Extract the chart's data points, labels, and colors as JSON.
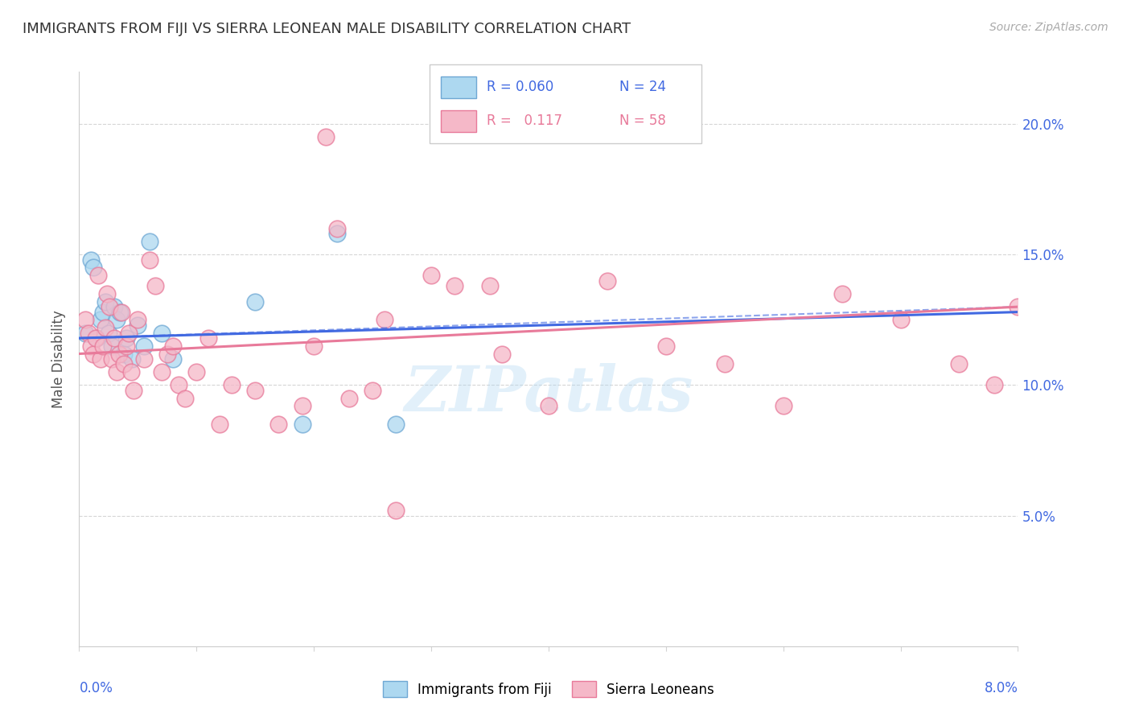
{
  "title": "IMMIGRANTS FROM FIJI VS SIERRA LEONEAN MALE DISABILITY CORRELATION CHART",
  "source": "Source: ZipAtlas.com",
  "ylabel": "Male Disability",
  "xlim": [
    0.0,
    8.0
  ],
  "ylim": [
    0.0,
    22.0
  ],
  "yticks": [
    5.0,
    10.0,
    15.0,
    20.0
  ],
  "ytick_labels": [
    "5.0%",
    "10.0%",
    "15.0%",
    "20.0%"
  ],
  "fiji_color": "#add8f0",
  "fiji_edge_color": "#6fa8d4",
  "sierra_color": "#f5b8c8",
  "sierra_edge_color": "#e87a9a",
  "fiji_line_color": "#4169E1",
  "sierra_line_color": "#e87a9a",
  "fiji_R": "0.060",
  "fiji_N": "24",
  "sierra_R": "0.117",
  "sierra_N": "58",
  "fiji_scatter_x": [
    0.05,
    0.1,
    0.12,
    0.15,
    0.18,
    0.2,
    0.22,
    0.25,
    0.28,
    0.3,
    0.32,
    0.35,
    0.38,
    0.4,
    0.45,
    0.5,
    0.55,
    0.6,
    0.7,
    0.8,
    1.5,
    1.9,
    2.2,
    2.7
  ],
  "fiji_scatter_y": [
    12.0,
    14.8,
    14.5,
    11.8,
    12.5,
    12.8,
    13.2,
    12.0,
    11.5,
    13.0,
    12.5,
    12.8,
    11.2,
    11.8,
    11.0,
    12.3,
    11.5,
    15.5,
    12.0,
    11.0,
    13.2,
    8.5,
    15.8,
    8.5
  ],
  "sierra_scatter_x": [
    0.05,
    0.08,
    0.1,
    0.12,
    0.14,
    0.16,
    0.18,
    0.2,
    0.22,
    0.24,
    0.26,
    0.28,
    0.3,
    0.32,
    0.34,
    0.36,
    0.38,
    0.4,
    0.42,
    0.44,
    0.46,
    0.5,
    0.55,
    0.6,
    0.65,
    0.7,
    0.75,
    0.8,
    0.85,
    0.9,
    1.0,
    1.1,
    1.2,
    1.3,
    1.5,
    1.7,
    1.9,
    2.0,
    2.1,
    2.2,
    2.3,
    2.5,
    2.7,
    3.0,
    3.5,
    3.6,
    4.0,
    4.5,
    5.0,
    5.5,
    6.0,
    6.5,
    7.0,
    7.5,
    7.8,
    8.0,
    2.6,
    3.2
  ],
  "sierra_scatter_y": [
    12.5,
    12.0,
    11.5,
    11.2,
    11.8,
    14.2,
    11.0,
    11.5,
    12.2,
    13.5,
    13.0,
    11.0,
    11.8,
    10.5,
    11.2,
    12.8,
    10.8,
    11.5,
    12.0,
    10.5,
    9.8,
    12.5,
    11.0,
    14.8,
    13.8,
    10.5,
    11.2,
    11.5,
    10.0,
    9.5,
    10.5,
    11.8,
    8.5,
    10.0,
    9.8,
    8.5,
    9.2,
    11.5,
    19.5,
    16.0,
    9.5,
    9.8,
    5.2,
    14.2,
    13.8,
    11.2,
    9.2,
    14.0,
    11.5,
    10.8,
    9.2,
    13.5,
    12.5,
    10.8,
    10.0,
    13.0,
    12.5,
    13.8
  ],
  "fiji_trendline_x": [
    0.0,
    8.0
  ],
  "fiji_trendline_y": [
    11.8,
    12.8
  ],
  "sierra_trendline_x": [
    0.0,
    8.0
  ],
  "sierra_trendline_y": [
    11.2,
    13.0
  ]
}
